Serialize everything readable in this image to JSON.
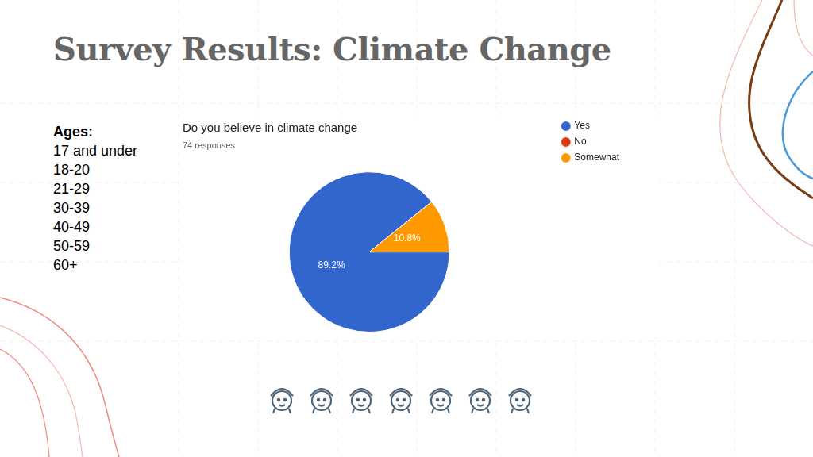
{
  "title": "Survey Results: Climate Change",
  "ages": {
    "heading": "Ages:",
    "items": [
      "17 and under",
      "18-20",
      "21-29",
      "30-39",
      "40-49",
      "50-59",
      "60+"
    ]
  },
  "chart_data": {
    "type": "pie",
    "title": "Do you believe in climate change",
    "subtitle": "74 responses",
    "categories": [
      "Yes",
      "No",
      "Somewhat"
    ],
    "values": [
      89.2,
      0,
      10.8
    ],
    "colors": [
      "#3366cc",
      "#dc3912",
      "#ff9900"
    ],
    "data_labels": true,
    "value_labels": [
      "89.2%",
      null,
      "10.8%"
    ],
    "legend": "right"
  }
}
